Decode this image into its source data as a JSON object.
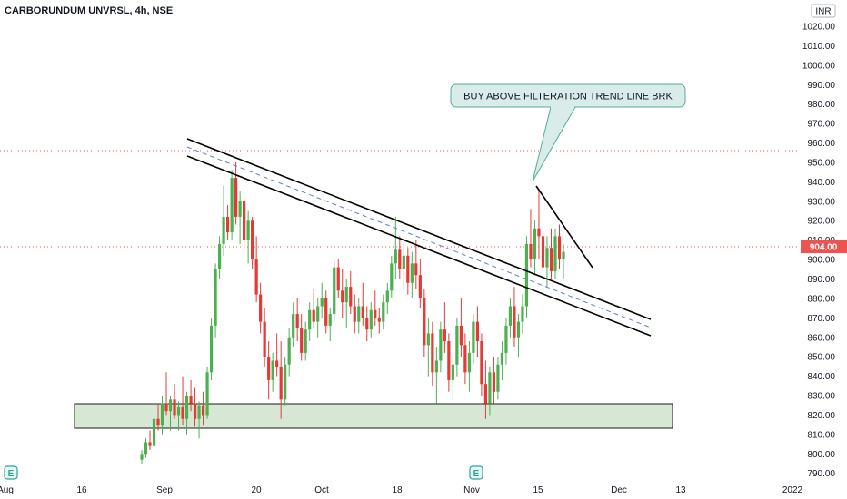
{
  "header": {
    "title": "CARBORUNDUM UNVRSL, 4h, NSE",
    "currency": "INR"
  },
  "colors": {
    "up": "#26a69a",
    "down": "#ef5350",
    "up_candle": "#4caf50",
    "down_candle": "#e53935",
    "price_tag": "#ef5350",
    "zone_fill": "#d6e8d3",
    "callout_fill": "#d9ecea"
  },
  "annotation": {
    "text": "BUY ABOVE FILTERATION TREND LINE BRK"
  },
  "chart_data": {
    "type": "candlestick",
    "symbol": "CARBORUNDUM UNVRSL",
    "interval": "4h",
    "exchange": "NSE",
    "last_price": "904.00",
    "ylim": [
      788,
      1027
    ],
    "y_ticks": [
      "790.00",
      "800.00",
      "810.00",
      "820.00",
      "830.00",
      "840.00",
      "850.00",
      "860.00",
      "870.00",
      "880.00",
      "890.00",
      "900.00",
      "910.00",
      "920.00",
      "930.00",
      "940.00",
      "950.00",
      "960.00",
      "970.00",
      "980.00",
      "990.00",
      "1000.00",
      "1010.00",
      "1020.00"
    ],
    "x_ticks": [
      "Aug",
      "16",
      "Sep",
      "20",
      "Oct",
      "18",
      "Nov",
      "15",
      "Dec",
      "13",
      "2022"
    ],
    "candles": [
      [
        797,
        802,
        795,
        800
      ],
      [
        800,
        808,
        798,
        806
      ],
      [
        806,
        812,
        802,
        804
      ],
      [
        804,
        820,
        803,
        818
      ],
      [
        818,
        826,
        812,
        815
      ],
      [
        815,
        830,
        810,
        826
      ],
      [
        826,
        842,
        820,
        822
      ],
      [
        822,
        830,
        812,
        828
      ],
      [
        828,
        836,
        818,
        820
      ],
      [
        820,
        827,
        812,
        824
      ],
      [
        824,
        840,
        815,
        818
      ],
      [
        818,
        832,
        810,
        830
      ],
      [
        830,
        838,
        822,
        826
      ],
      [
        826,
        834,
        814,
        818
      ],
      [
        818,
        827,
        808,
        825
      ],
      [
        825,
        832,
        815,
        820
      ],
      [
        820,
        845,
        818,
        842
      ],
      [
        842,
        870,
        838,
        866
      ],
      [
        866,
        898,
        860,
        895
      ],
      [
        895,
        912,
        890,
        908
      ],
      [
        908,
        938,
        902,
        922
      ],
      [
        922,
        928,
        910,
        914
      ],
      [
        914,
        946,
        910,
        942
      ],
      [
        942,
        950,
        918,
        922
      ],
      [
        922,
        935,
        908,
        930
      ],
      [
        930,
        932,
        905,
        910
      ],
      [
        910,
        925,
        898,
        920
      ],
      [
        920,
        922,
        895,
        900
      ],
      [
        900,
        912,
        878,
        882
      ],
      [
        882,
        888,
        862,
        868
      ],
      [
        868,
        875,
        845,
        850
      ],
      [
        850,
        858,
        828,
        838
      ],
      [
        838,
        852,
        832,
        848
      ],
      [
        848,
        862,
        840,
        845
      ],
      [
        845,
        858,
        818,
        828
      ],
      [
        828,
        850,
        825,
        846
      ],
      [
        846,
        865,
        840,
        860
      ],
      [
        860,
        878,
        855,
        872
      ],
      [
        872,
        880,
        858,
        865
      ],
      [
        865,
        872,
        848,
        852
      ],
      [
        852,
        868,
        848,
        864
      ],
      [
        864,
        878,
        858,
        874
      ],
      [
        874,
        885,
        865,
        868
      ],
      [
        868,
        880,
        860,
        876
      ],
      [
        876,
        888,
        870,
        880
      ],
      [
        880,
        884,
        862,
        866
      ],
      [
        866,
        875,
        858,
        872
      ],
      [
        872,
        900,
        868,
        896
      ],
      [
        896,
        900,
        880,
        884
      ],
      [
        884,
        895,
        870,
        878
      ],
      [
        878,
        890,
        865,
        886
      ],
      [
        886,
        894,
        872,
        876
      ],
      [
        876,
        882,
        862,
        868
      ],
      [
        868,
        880,
        862,
        876
      ],
      [
        876,
        888,
        866,
        870
      ],
      [
        870,
        876,
        858,
        864
      ],
      [
        864,
        878,
        860,
        874
      ],
      [
        874,
        884,
        866,
        870
      ],
      [
        870,
        875,
        862,
        868
      ],
      [
        868,
        882,
        864,
        878
      ],
      [
        878,
        888,
        872,
        884
      ],
      [
        884,
        902,
        880,
        898
      ],
      [
        898,
        922,
        890,
        905
      ],
      [
        905,
        912,
        890,
        895
      ],
      [
        895,
        908,
        885,
        902
      ],
      [
        902,
        906,
        882,
        888
      ],
      [
        888,
        904,
        880,
        898
      ],
      [
        898,
        910,
        885,
        892
      ],
      [
        892,
        900,
        875,
        880
      ],
      [
        880,
        885,
        850,
        856
      ],
      [
        856,
        870,
        840,
        862
      ],
      [
        862,
        868,
        835,
        842
      ],
      [
        842,
        855,
        826,
        848
      ],
      [
        848,
        868,
        842,
        864
      ],
      [
        864,
        878,
        852,
        858
      ],
      [
        858,
        862,
        832,
        838
      ],
      [
        838,
        850,
        828,
        846
      ],
      [
        846,
        870,
        840,
        866
      ],
      [
        866,
        880,
        850,
        856
      ],
      [
        856,
        862,
        836,
        842
      ],
      [
        842,
        858,
        832,
        852
      ],
      [
        852,
        872,
        846,
        868
      ],
      [
        868,
        876,
        850,
        858
      ],
      [
        858,
        862,
        830,
        836
      ],
      [
        836,
        848,
        818,
        826
      ],
      [
        826,
        845,
        820,
        842
      ],
      [
        842,
        850,
        826,
        832
      ],
      [
        832,
        850,
        828,
        846
      ],
      [
        846,
        858,
        838,
        852
      ],
      [
        852,
        870,
        846,
        866
      ],
      [
        866,
        880,
        860,
        876
      ],
      [
        876,
        886,
        855,
        860
      ],
      [
        860,
        872,
        850,
        868
      ],
      [
        868,
        882,
        862,
        876
      ],
      [
        876,
        912,
        870,
        908
      ],
      [
        908,
        926,
        896,
        900
      ],
      [
        900,
        920,
        892,
        916
      ],
      [
        916,
        936,
        900,
        912
      ],
      [
        912,
        920,
        888,
        896
      ],
      [
        896,
        912,
        886,
        906
      ],
      [
        906,
        916,
        890,
        894
      ],
      [
        894,
        916,
        890,
        912
      ],
      [
        912,
        918,
        895,
        900
      ],
      [
        900,
        908,
        890,
        904
      ]
    ],
    "zones": [
      {
        "label": "",
        "low": 814,
        "high": 827
      }
    ],
    "trend_lines": [
      "upper channel",
      "lower channel",
      "channel midline",
      "short-term falling trend line"
    ],
    "annotations": [
      "BUY ABOVE FILTERATION TREND LINE BRK"
    ],
    "grid": false,
    "legend": "none"
  }
}
